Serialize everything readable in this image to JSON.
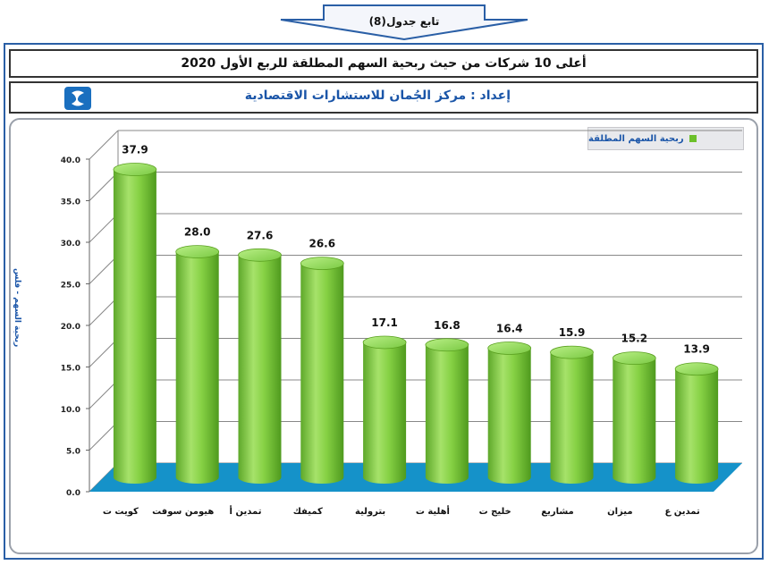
{
  "header": {
    "continuation_label": "تابع جدول",
    "table_number": "(8)",
    "title": "أعلى 10 شركات من حيث ربحية السهم المطلقة للربع الأول 2020",
    "prepared_by": "إعداد : مركز الجُمان للاستشارات الاقتصادية",
    "logo_icon": "jumanah-logo-icon"
  },
  "colors": {
    "bar": "#7ac943",
    "bar_dark": "#5aa020",
    "floor": "#1592c9",
    "frame": "#2a5fa6",
    "label": "#1a55a8"
  },
  "chart_data": {
    "type": "bar",
    "categories": [
      "كويت ت",
      "هيومن سوفت",
      "تمدين أ",
      "كميفك",
      "بترولية",
      "أهلية ت",
      "خليج ت",
      "مشاريع",
      "ميزان",
      "تمدين ع"
    ],
    "series": [
      {
        "name": "ربحية السهم المطلقة",
        "values": [
          37.9,
          28.0,
          27.6,
          26.6,
          17.1,
          16.8,
          16.4,
          15.9,
          15.2,
          13.9
        ]
      }
    ],
    "data_labels": [
      "37.9",
      "28.0",
      "27.6",
      "26.6",
      "17.1",
      "16.8",
      "16.4",
      "15.9",
      "15.2",
      "13.9"
    ],
    "ylabel": "ربحية السهم - فلس",
    "ylim": [
      0,
      40
    ],
    "yticks": [
      "0.0",
      "5.0",
      "10.0",
      "15.0",
      "20.0",
      "25.0",
      "30.0",
      "35.0",
      "40.0"
    ],
    "legend_position": "top-right",
    "grid": true
  }
}
